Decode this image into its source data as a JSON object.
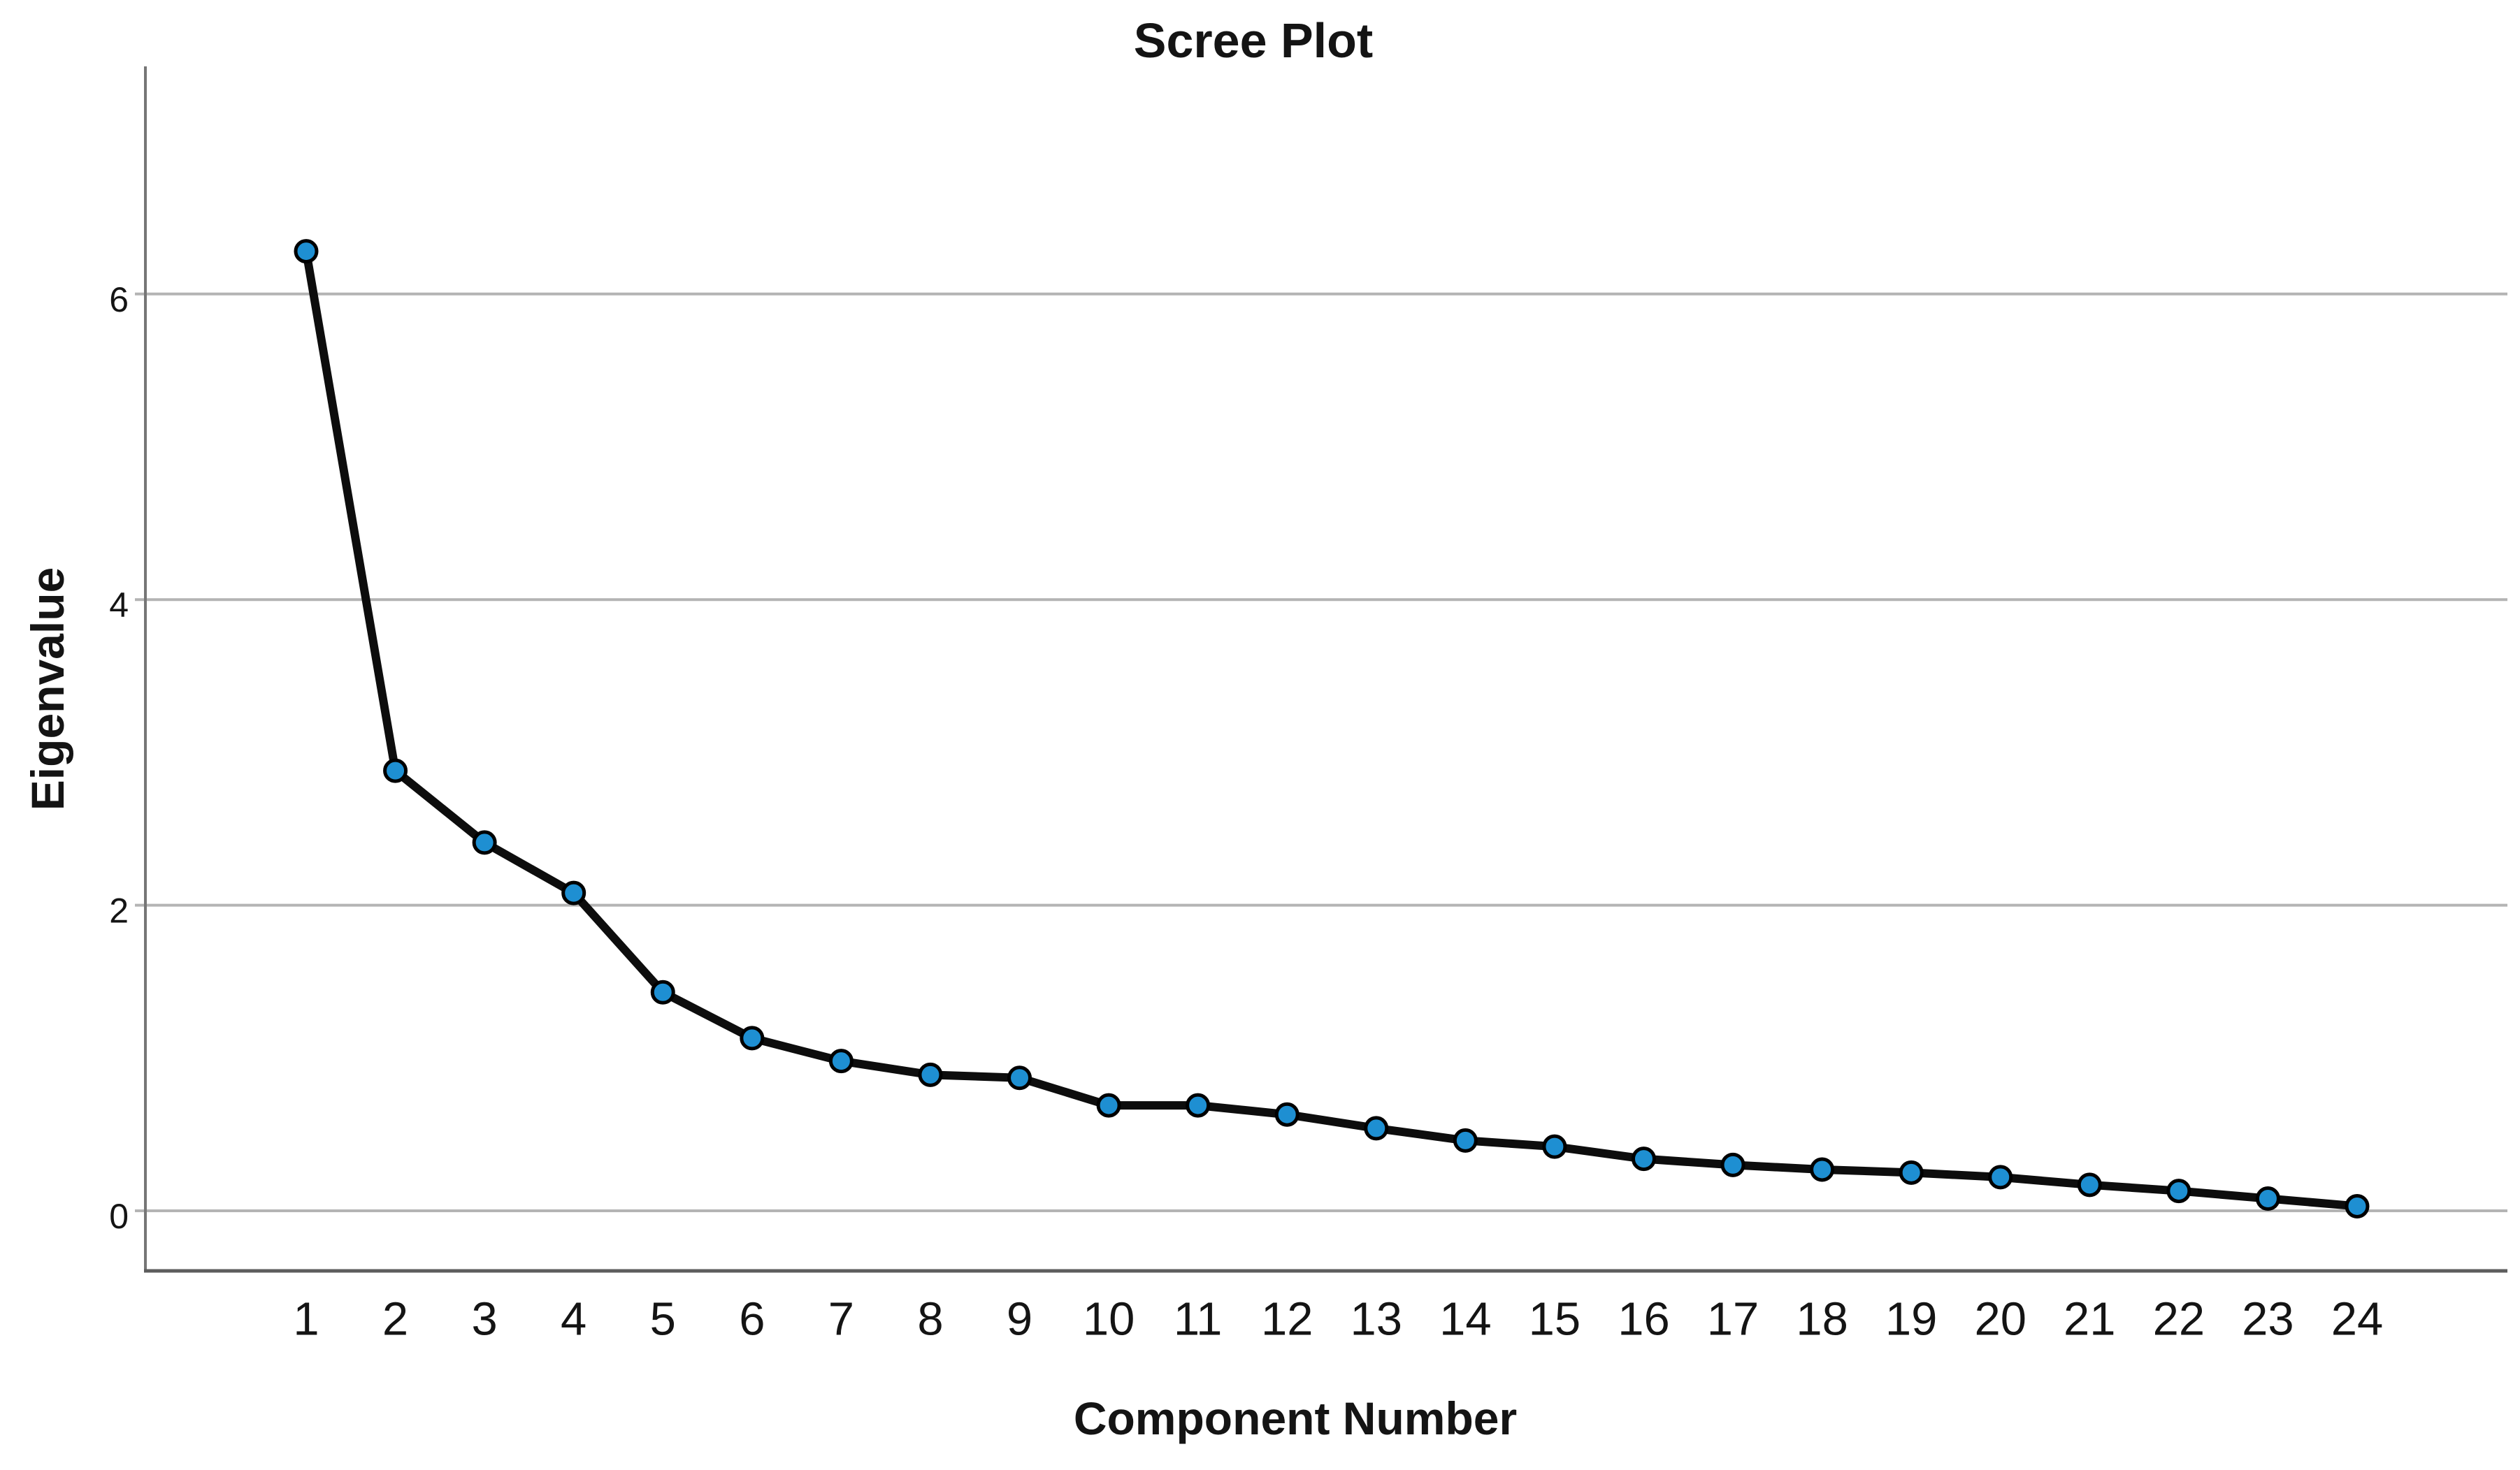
{
  "chart_data": {
    "type": "line",
    "title": "Scree Plot",
    "xlabel": "Component Number",
    "ylabel": "Eigenvalue",
    "x": [
      1,
      2,
      3,
      4,
      5,
      6,
      7,
      8,
      9,
      10,
      11,
      12,
      13,
      14,
      15,
      16,
      17,
      18,
      19,
      20,
      21,
      22,
      23,
      24
    ],
    "series": [
      {
        "name": "Eigenvalue",
        "values": [
          6.28,
          2.88,
          2.41,
          2.08,
          1.43,
          1.13,
          0.98,
          0.89,
          0.87,
          0.69,
          0.69,
          0.63,
          0.54,
          0.46,
          0.42,
          0.34,
          0.3,
          0.27,
          0.25,
          0.22,
          0.17,
          0.13,
          0.08,
          0.03
        ]
      }
    ],
    "y_ticks": [
      6,
      4,
      2,
      0
    ],
    "ylim": [
      -0.39,
      7.37
    ],
    "xlim": [
      -0.8,
      25.7
    ],
    "grid": "horizontal",
    "legend": "none",
    "marker": "circle",
    "colors": {
      "marker_fill": "#1e8fd2",
      "marker_stroke": "#000000",
      "line": "#0d0d0d",
      "grid": "#b4b4b4",
      "y_axis": "#767676",
      "x_axis": "#5d5d5d",
      "text": "#141414",
      "background": "#ffffff"
    }
  }
}
